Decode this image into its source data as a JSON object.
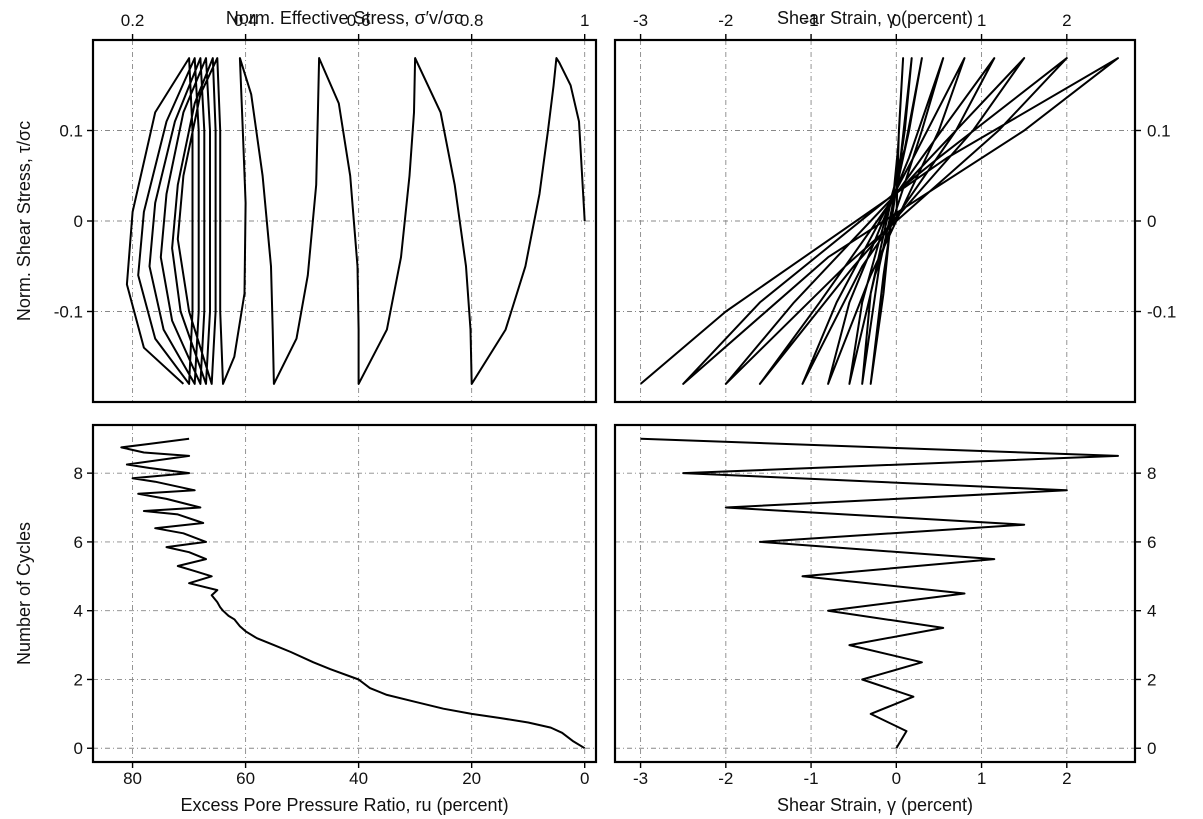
{
  "chart_data": [
    {
      "panel": "top-left",
      "type": "line",
      "title": "",
      "xlabel": "Norm. Effective Stress, σ′v/σc",
      "ylabel": "Norm. Shear Stress, τ/σc",
      "xlim": [
        0.13,
        1.02
      ],
      "ylim": [
        -0.2,
        0.2
      ],
      "x_ticks": [
        0.2,
        0.4,
        0.6,
        0.8,
        1
      ],
      "x_tick_labels": [
        "0.2",
        "0.4",
        "0.6",
        "0.8",
        "1"
      ],
      "y_ticks": [
        0.1,
        0,
        -0.1
      ],
      "y_tick_labels": [
        "0.1",
        "0",
        "-0.1"
      ],
      "grid": true,
      "series": [
        {
          "points": [
            [
              1.0,
              0.0
            ],
            [
              0.99,
              0.11
            ],
            [
              0.975,
              0.15
            ],
            [
              0.955,
              0.175
            ],
            [
              0.95,
              0.18
            ],
            [
              0.945,
              0.15
            ],
            [
              0.935,
              0.1
            ],
            [
              0.92,
              0.03
            ],
            [
              0.895,
              -0.05
            ],
            [
              0.86,
              -0.12
            ],
            [
              0.8,
              -0.18
            ],
            [
              0.798,
              -0.12
            ],
            [
              0.79,
              -0.05
            ],
            [
              0.77,
              0.04
            ],
            [
              0.745,
              0.12
            ],
            [
              0.7,
              0.18
            ],
            [
              0.698,
              0.12
            ],
            [
              0.69,
              0.05
            ],
            [
              0.675,
              -0.04
            ],
            [
              0.65,
              -0.12
            ],
            [
              0.6,
              -0.18
            ],
            [
              0.6,
              -0.12
            ],
            [
              0.598,
              -0.05
            ],
            [
              0.585,
              0.05
            ],
            [
              0.565,
              0.13
            ],
            [
              0.53,
              0.18
            ],
            [
              0.528,
              0.12
            ],
            [
              0.525,
              0.04
            ],
            [
              0.51,
              -0.06
            ],
            [
              0.49,
              -0.13
            ],
            [
              0.45,
              -0.18
            ],
            [
              0.448,
              -0.12
            ],
            [
              0.445,
              -0.05
            ],
            [
              0.43,
              0.05
            ],
            [
              0.41,
              0.14
            ],
            [
              0.39,
              0.18
            ],
            [
              0.395,
              0.1
            ],
            [
              0.4,
              0.02
            ],
            [
              0.398,
              -0.08
            ],
            [
              0.38,
              -0.15
            ],
            [
              0.36,
              -0.18
            ],
            [
              0.355,
              -0.1
            ],
            [
              0.355,
              0.0
            ],
            [
              0.355,
              0.1
            ],
            [
              0.35,
              0.18
            ],
            [
              0.32,
              0.14
            ],
            [
              0.29,
              0.05
            ],
            [
              0.28,
              -0.02
            ],
            [
              0.3,
              -0.1
            ],
            [
              0.34,
              -0.18
            ],
            [
              0.347,
              -0.1
            ],
            [
              0.347,
              0.0
            ],
            [
              0.347,
              0.1
            ],
            [
              0.342,
              0.18
            ],
            [
              0.31,
              0.13
            ],
            [
              0.28,
              0.04
            ],
            [
              0.27,
              -0.03
            ],
            [
              0.285,
              -0.1
            ],
            [
              0.33,
              -0.18
            ],
            [
              0.337,
              -0.1
            ],
            [
              0.337,
              0.0
            ],
            [
              0.337,
              0.1
            ],
            [
              0.33,
              0.18
            ],
            [
              0.29,
              0.12
            ],
            [
              0.26,
              0.03
            ],
            [
              0.25,
              -0.04
            ],
            [
              0.27,
              -0.11
            ],
            [
              0.32,
              -0.18
            ],
            [
              0.327,
              -0.1
            ],
            [
              0.327,
              0.0
            ],
            [
              0.327,
              0.1
            ],
            [
              0.32,
              0.18
            ],
            [
              0.275,
              0.11
            ],
            [
              0.24,
              0.02
            ],
            [
              0.23,
              -0.05
            ],
            [
              0.255,
              -0.12
            ],
            [
              0.31,
              -0.18
            ],
            [
              0.317,
              -0.1
            ],
            [
              0.317,
              0.0
            ],
            [
              0.317,
              0.1
            ],
            [
              0.31,
              0.18
            ],
            [
              0.26,
              0.11
            ],
            [
              0.22,
              0.01
            ],
            [
              0.21,
              -0.06
            ],
            [
              0.24,
              -0.13
            ],
            [
              0.3,
              -0.18
            ],
            [
              0.306,
              -0.1
            ],
            [
              0.306,
              0.0
            ],
            [
              0.306,
              0.1
            ],
            [
              0.3,
              0.18
            ],
            [
              0.24,
              0.12
            ],
            [
              0.2,
              0.01
            ],
            [
              0.19,
              -0.07
            ],
            [
              0.22,
              -0.14
            ],
            [
              0.29,
              -0.18
            ]
          ]
        }
      ]
    },
    {
      "panel": "top-right",
      "type": "line",
      "title": "",
      "xlabel": "Shear Strain, γ (percent)",
      "ylabel": "",
      "xlim": [
        -3.3,
        2.8
      ],
      "ylim": [
        -0.2,
        0.2
      ],
      "x_ticks": [
        -3,
        -2,
        -1,
        0,
        1,
        2
      ],
      "x_tick_labels": [
        "-3",
        "-2",
        "-1",
        "0",
        "1",
        "2"
      ],
      "y_ticks": [
        0.1,
        0,
        -0.1
      ],
      "y_tick_labels": [
        "0.1",
        "0",
        "-0.1"
      ],
      "grid": true,
      "series": [
        {
          "points": [
            [
              0,
              0
            ],
            [
              0.03,
              0.1
            ],
            [
              0.08,
              0.18
            ],
            [
              0.02,
              0.08
            ],
            [
              -0.15,
              -0.08
            ],
            [
              -0.3,
              -0.18
            ],
            [
              -0.15,
              -0.06
            ],
            [
              0.1,
              0.1
            ],
            [
              0.18,
              0.18
            ],
            [
              0.05,
              0.07
            ],
            [
              -0.3,
              -0.08
            ],
            [
              -0.4,
              -0.18
            ],
            [
              -0.2,
              -0.05
            ],
            [
              0.15,
              0.1
            ],
            [
              0.3,
              0.18
            ],
            [
              0.1,
              0.08
            ],
            [
              -0.4,
              -0.09
            ],
            [
              -0.55,
              -0.18
            ],
            [
              -0.25,
              -0.06
            ],
            [
              0.3,
              0.1
            ],
            [
              0.55,
              0.18
            ],
            [
              0.15,
              0.07
            ],
            [
              -0.55,
              -0.09
            ],
            [
              -0.8,
              -0.18
            ],
            [
              -0.3,
              -0.06
            ],
            [
              0.5,
              0.1
            ],
            [
              0.8,
              0.18
            ],
            [
              0.2,
              0.07
            ],
            [
              -0.7,
              -0.09
            ],
            [
              -1.1,
              -0.18
            ],
            [
              -0.4,
              -0.05
            ],
            [
              0.7,
              0.1
            ],
            [
              1.15,
              0.18
            ],
            [
              0.3,
              0.07
            ],
            [
              -0.9,
              -0.09
            ],
            [
              -1.6,
              -0.18
            ],
            [
              -0.5,
              -0.05
            ],
            [
              0.9,
              0.1
            ],
            [
              1.5,
              0.18
            ],
            [
              0.4,
              0.07
            ],
            [
              -1.2,
              -0.09
            ],
            [
              -2.0,
              -0.18
            ],
            [
              -0.6,
              -0.05
            ],
            [
              1.2,
              0.1
            ],
            [
              2.0,
              0.18
            ],
            [
              0.5,
              0.07
            ],
            [
              -1.6,
              -0.09
            ],
            [
              -2.5,
              -0.18
            ],
            [
              -0.8,
              -0.04
            ],
            [
              1.5,
              0.1
            ],
            [
              2.6,
              0.18
            ],
            [
              0.6,
              0.07
            ],
            [
              -2.0,
              -0.1
            ],
            [
              -3.0,
              -0.18
            ]
          ]
        }
      ]
    },
    {
      "panel": "bottom-left",
      "type": "line",
      "title": "",
      "xlabel": "Excess Pore Pressure Ratio, ru (percent)",
      "ylabel": "Number of Cycles",
      "xlim": [
        87,
        -2
      ],
      "ylim": [
        -0.4,
        9.4
      ],
      "x_ticks": [
        80,
        60,
        40,
        20,
        0
      ],
      "x_tick_labels": [
        "80",
        "60",
        "40",
        "20",
        "0"
      ],
      "y_ticks": [
        0,
        2,
        4,
        6,
        8
      ],
      "y_tick_labels": [
        "0",
        "2",
        "4",
        "6",
        "8"
      ],
      "grid": true,
      "series": [
        {
          "points": [
            [
              0,
              0
            ],
            [
              2,
              0.2
            ],
            [
              4,
              0.45
            ],
            [
              6,
              0.6
            ],
            [
              10,
              0.75
            ],
            [
              15,
              0.88
            ],
            [
              20,
              1.0
            ],
            [
              25,
              1.15
            ],
            [
              30,
              1.35
            ],
            [
              35,
              1.55
            ],
            [
              38,
              1.75
            ],
            [
              40,
              2.0
            ],
            [
              45,
              2.3
            ],
            [
              48,
              2.5
            ],
            [
              52,
              2.8
            ],
            [
              55,
              3.0
            ],
            [
              58,
              3.2
            ],
            [
              60,
              3.4
            ],
            [
              61,
              3.55
            ],
            [
              62,
              3.75
            ],
            [
              63,
              3.85
            ],
            [
              64,
              4.0
            ],
            [
              64.5,
              4.1
            ],
            [
              65,
              4.25
            ],
            [
              66,
              4.45
            ],
            [
              65,
              4.6
            ],
            [
              70,
              4.8
            ],
            [
              66,
              5.0
            ],
            [
              69,
              5.15
            ],
            [
              72,
              5.3
            ],
            [
              67,
              5.5
            ],
            [
              70,
              5.7
            ],
            [
              74,
              5.85
            ],
            [
              67,
              6.0
            ],
            [
              71,
              6.25
            ],
            [
              76,
              6.4
            ],
            [
              67.5,
              6.55
            ],
            [
              72,
              6.8
            ],
            [
              78,
              6.9
            ],
            [
              68,
              7.0
            ],
            [
              74,
              7.25
            ],
            [
              79,
              7.4
            ],
            [
              69,
              7.5
            ],
            [
              76,
              7.75
            ],
            [
              80,
              7.85
            ],
            [
              70,
              8.0
            ],
            [
              77,
              8.15
            ],
            [
              81,
              8.25
            ],
            [
              70,
              8.5
            ],
            [
              78,
              8.6
            ],
            [
              82,
              8.75
            ],
            [
              77,
              8.85
            ],
            [
              70,
              9.0
            ]
          ]
        }
      ]
    },
    {
      "panel": "bottom-right",
      "type": "line",
      "title": "",
      "xlabel": "Shear Strain, γ (percent)",
      "ylabel": "",
      "xlim": [
        -3.3,
        2.8
      ],
      "ylim": [
        -0.4,
        9.4
      ],
      "x_ticks": [
        -3,
        -2,
        -1,
        0,
        1,
        2
      ],
      "x_tick_labels": [
        "-3",
        "-2",
        "-1",
        "0",
        "1",
        "2"
      ],
      "y_ticks": [
        0,
        2,
        4,
        6,
        8
      ],
      "y_tick_labels": [
        "0",
        "2",
        "4",
        "6",
        "8"
      ],
      "grid": true,
      "series": [
        {
          "points": [
            [
              0,
              0
            ],
            [
              0.12,
              0.5
            ],
            [
              -0.3,
              1.0
            ],
            [
              0.2,
              1.5
            ],
            [
              -0.4,
              2.0
            ],
            [
              0.3,
              2.5
            ],
            [
              -0.55,
              3.0
            ],
            [
              0.55,
              3.5
            ],
            [
              -0.8,
              4.0
            ],
            [
              0.8,
              4.5
            ],
            [
              -1.1,
              5.0
            ],
            [
              1.15,
              5.5
            ],
            [
              -1.6,
              6.0
            ],
            [
              1.5,
              6.5
            ],
            [
              -2.0,
              7.0
            ],
            [
              2.0,
              7.5
            ],
            [
              -2.5,
              8.0
            ],
            [
              2.6,
              8.5
            ],
            [
              -3.0,
              9.0
            ]
          ]
        }
      ]
    }
  ]
}
